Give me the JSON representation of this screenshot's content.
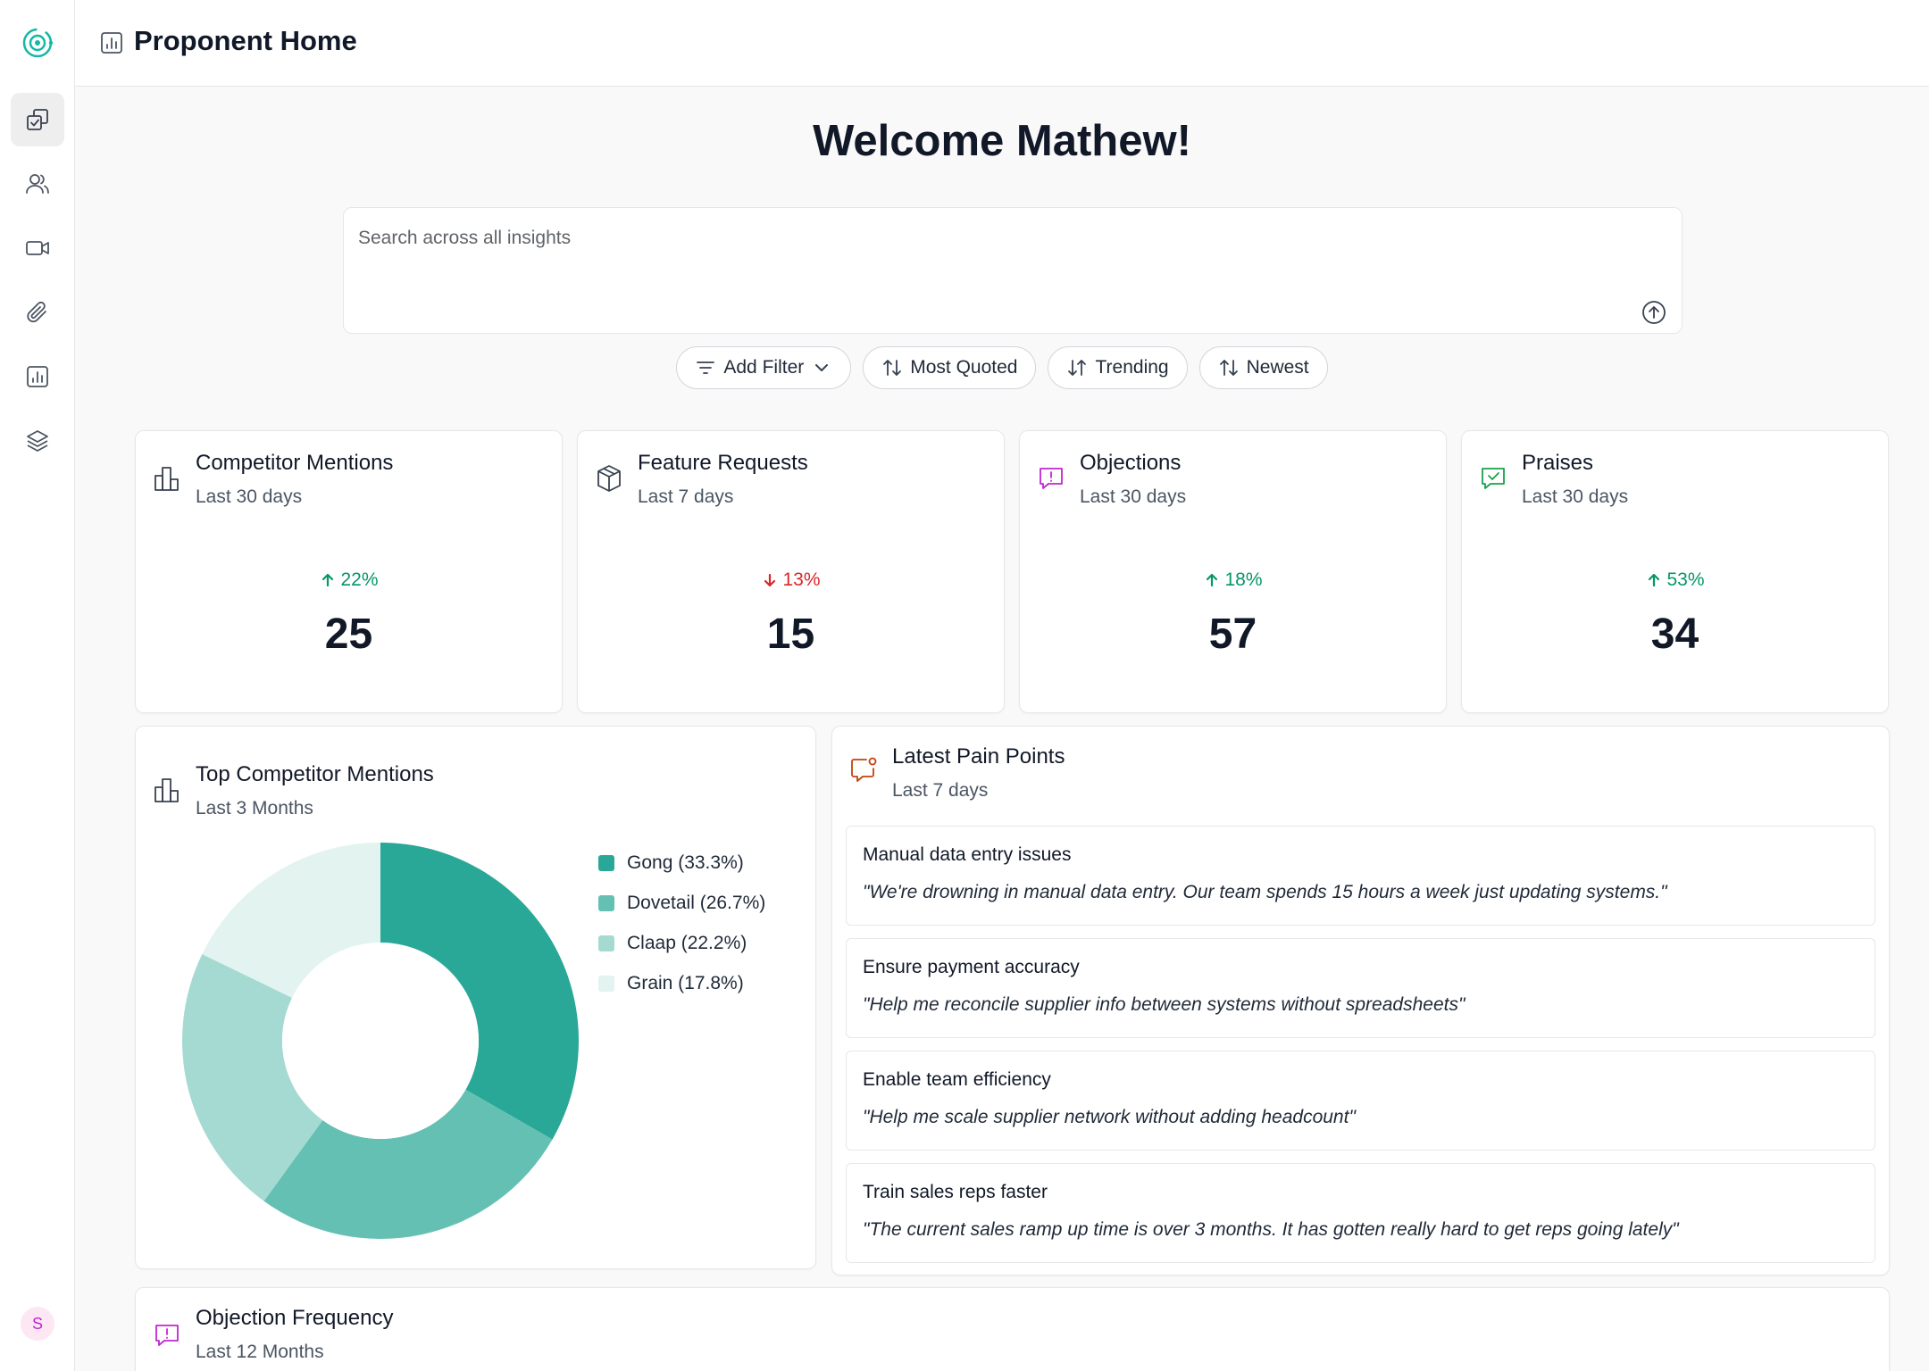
{
  "app": {
    "page_title": "Proponent Home",
    "welcome": "Welcome Mathew!",
    "colors": {
      "brand": "#14b8a6",
      "up": "#059669",
      "down": "#dc2626"
    }
  },
  "sidebar": {
    "logo_icon": "target-logo-icon",
    "items": [
      {
        "icon": "insights-icon",
        "active": true
      },
      {
        "icon": "users-icon",
        "active": false
      },
      {
        "icon": "video-icon",
        "active": false
      },
      {
        "icon": "paperclip-icon",
        "active": false
      },
      {
        "icon": "chart-icon",
        "active": false
      },
      {
        "icon": "layers-icon",
        "active": false
      }
    ],
    "avatar_initial": "S"
  },
  "search": {
    "placeholder": "Search across all insights"
  },
  "filters": {
    "add_filter": "Add Filter",
    "most_quoted": "Most Quoted",
    "trending": "Trending",
    "newest": "Newest"
  },
  "stats": [
    {
      "title": "Competitor Mentions",
      "period": "Last 30 days",
      "change": "22%",
      "direction": "up",
      "value": "25",
      "icon": "bar-chart-icon"
    },
    {
      "title": "Feature Requests",
      "period": "Last 7 days",
      "change": "13%",
      "direction": "down",
      "value": "15",
      "icon": "package-icon"
    },
    {
      "title": "Objections",
      "period": "Last 30 days",
      "change": "18%",
      "direction": "up",
      "value": "57",
      "icon": "alert-message-icon"
    },
    {
      "title": "Praises",
      "period": "Last 30 days",
      "change": "53%",
      "direction": "up",
      "value": "34",
      "icon": "check-message-icon"
    }
  ],
  "competitors": {
    "title": "Top Competitor Mentions",
    "period": "Last 3 Months",
    "legend": [
      "Gong (33.3%)",
      "Dovetail (26.7%)",
      "Claap (22.2%)",
      "Grain (17.8%)"
    ],
    "chart_data": {
      "type": "pie",
      "categories": [
        "Gong",
        "Dovetail",
        "Claap",
        "Grain"
      ],
      "values": [
        33.3,
        26.7,
        22.2,
        17.8
      ],
      "colors": [
        "#2aa897",
        "#65c0b4",
        "#a5dad2",
        "#e2f3f0"
      ]
    }
  },
  "pain_points": {
    "title": "Latest Pain Points",
    "period": "Last 7 days",
    "items": [
      {
        "title": "Manual data entry issues",
        "quote": "\"We're drowning in manual data entry. Our team spends 15 hours a week just updating systems.\""
      },
      {
        "title": "Ensure payment accuracy",
        "quote": "\"Help me reconcile supplier info between systems without spreadsheets\""
      },
      {
        "title": "Enable team efficiency",
        "quote": "\"Help me scale supplier network without adding headcount\""
      },
      {
        "title": "Train sales reps faster",
        "quote": "\"The current sales ramp up time is over 3 months. It has gotten really hard to get reps going lately\""
      }
    ]
  },
  "objection_frequency": {
    "title": "Objection Frequency",
    "period": "Last 12 Months"
  }
}
